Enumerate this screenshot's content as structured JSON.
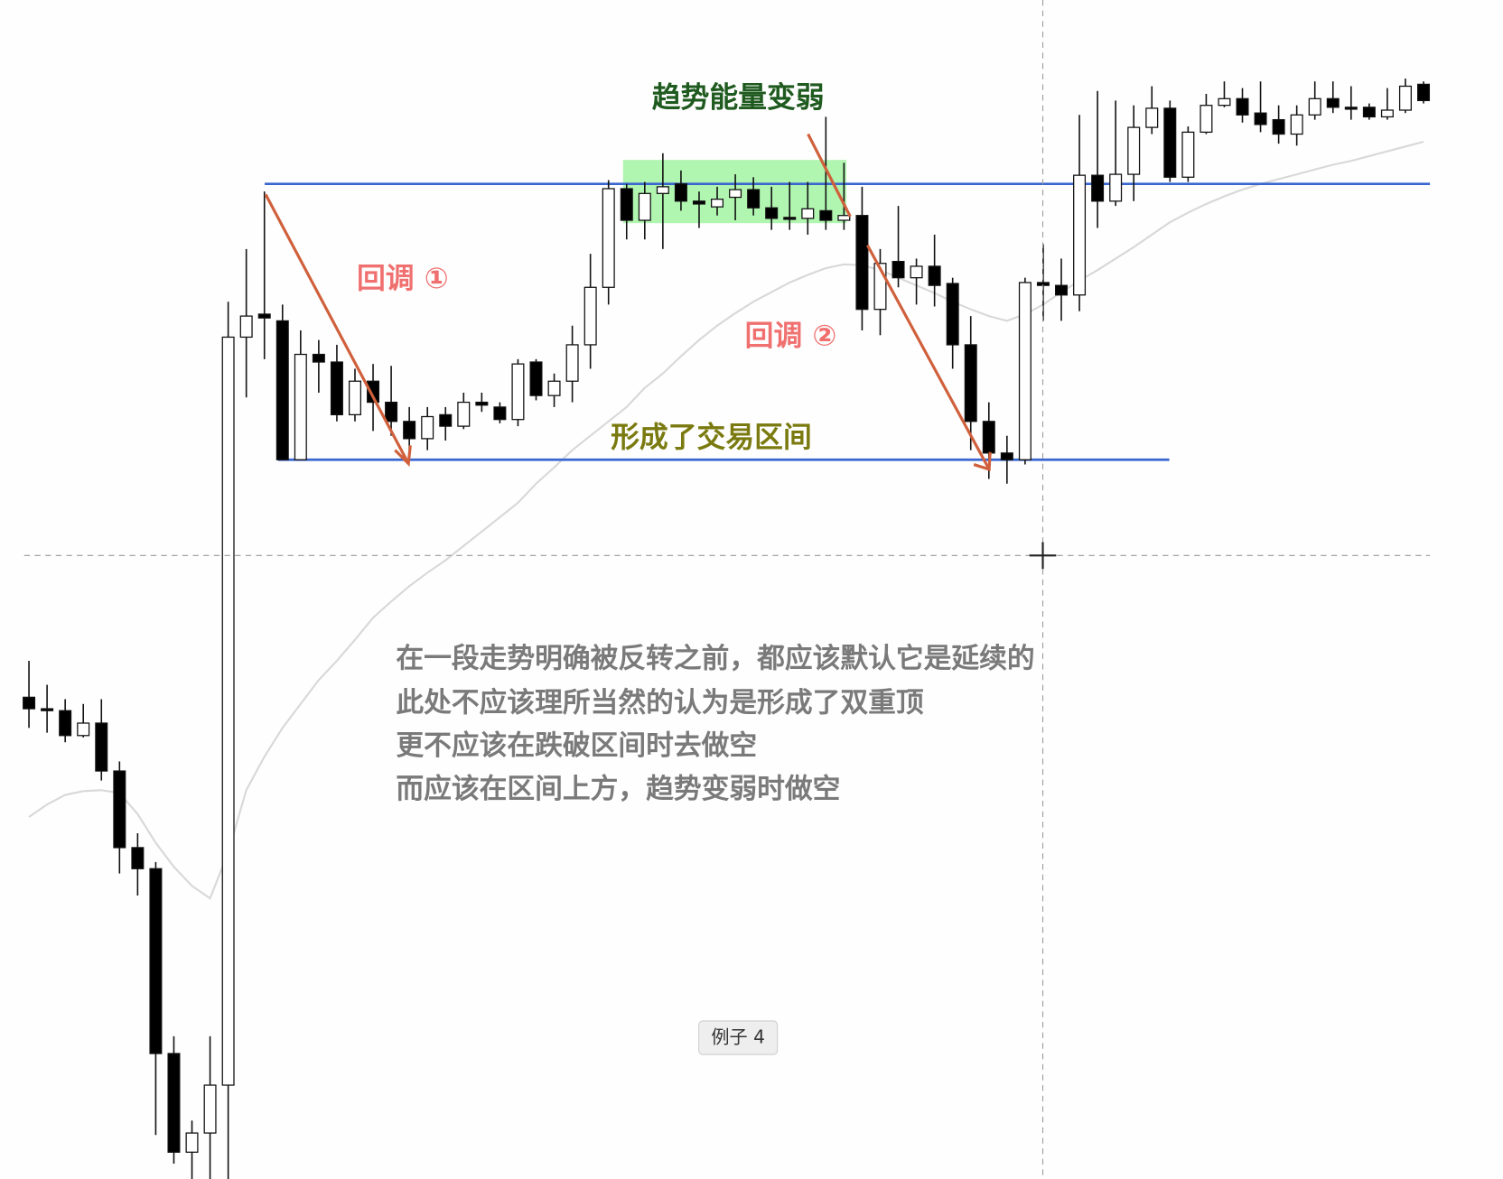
{
  "chart_data": {
    "type": "candlestick",
    "open": [
      503,
      491,
      489,
      463,
      476,
      426,
      346,
      324,
      131,
      28,
      48,
      98,
      879,
      903,
      896,
      751,
      861,
      853,
      798,
      833,
      811,
      791,
      773,
      798,
      786,
      811,
      806,
      793,
      853,
      818,
      833,
      871,
      931,
      1034,
      1001,
      1029,
      1039,
      1021,
      1015,
      1025,
      1033,
      1014,
      1004,
      1003,
      1011,
      1001,
      1006,
      908,
      958,
      941,
      953,
      935,
      871,
      791,
      758,
      751,
      936,
      933,
      923,
      1048,
      1021,
      1049,
      1098,
      1118,
      1046,
      1093,
      1121,
      1128,
      1113,
      1106,
      1091,
      1111,
      1128,
      1119,
      1119,
      1109,
      1116,
      1143
    ],
    "high": [
      541,
      516,
      501,
      496,
      501,
      436,
      361,
      331,
      149,
      61,
      149,
      916,
      971,
      1031,
      913,
      886,
      876,
      871,
      846,
      851,
      849,
      806,
      806,
      806,
      821,
      821,
      811,
      856,
      856,
      841,
      891,
      966,
      1043,
      1039,
      1041,
      1071,
      1053,
      1031,
      1036,
      1049,
      1046,
      1036,
      1041,
      1041,
      1109,
      1061,
      1036,
      971,
      1016,
      961,
      986,
      941,
      901,
      811,
      776,
      941,
      976,
      961,
      1111,
      1136,
      1126,
      1121,
      1141,
      1126,
      1099,
      1133,
      1146,
      1139,
      1146,
      1121,
      1121,
      1146,
      1146,
      1141,
      1123,
      1139,
      1149,
      1146
    ],
    "low": [
      471,
      466,
      456,
      461,
      416,
      319,
      296,
      46,
      16,
      0,
      0,
      0,
      816,
      856,
      751,
      751,
      821,
      791,
      791,
      781,
      776,
      761,
      761,
      771,
      783,
      801,
      789,
      786,
      813,
      806,
      811,
      846,
      913,
      981,
      981,
      971,
      1011,
      993,
      1006,
      1001,
      1006,
      991,
      991,
      986,
      991,
      991,
      886,
      881,
      931,
      913,
      911,
      846,
      761,
      731,
      726,
      746,
      896,
      896,
      906,
      993,
      1016,
      1021,
      1091,
      1041,
      1041,
      1091,
      1119,
      1103,
      1093,
      1081,
      1079,
      1106,
      1113,
      1106,
      1106,
      1106,
      1113,
      1123
    ],
    "close": [
      491,
      489,
      463,
      476,
      426,
      346,
      324,
      131,
      28,
      48,
      98,
      879,
      901,
      899,
      751,
      861,
      853,
      798,
      833,
      811,
      791,
      773,
      796,
      786,
      811,
      808,
      793,
      851,
      818,
      833,
      871,
      931,
      1034,
      1001,
      1029,
      1036,
      1021,
      1018,
      1023,
      1033,
      1014,
      1003,
      1002,
      1013,
      1001,
      1006,
      908,
      956,
      941,
      953,
      933,
      871,
      791,
      758,
      751,
      936,
      933,
      923,
      1048,
      1021,
      1049,
      1098,
      1118,
      1046,
      1093,
      1121,
      1128,
      1111,
      1101,
      1091,
      1111,
      1128,
      1119,
      1118,
      1109,
      1116,
      1141,
      1126
    ],
    "ma": [
      378,
      391,
      401,
      405,
      406,
      403,
      381,
      351,
      326,
      306,
      293,
      341,
      406,
      441,
      471,
      496,
      521,
      541,
      563,
      586,
      603,
      619,
      633,
      646,
      661,
      676,
      691,
      706,
      726,
      743,
      761,
      776,
      791,
      806,
      826,
      841,
      859,
      876,
      891,
      904,
      916,
      926,
      936,
      944,
      951,
      955,
      954,
      949,
      941,
      933,
      925,
      916,
      908,
      901,
      896,
      903,
      913,
      926,
      938,
      949,
      961,
      973,
      986,
      999,
      1009,
      1018,
      1026,
      1033,
      1039,
      1044,
      1049,
      1054,
      1059,
      1063,
      1068,
      1073,
      1078,
      1083
    ],
    "ylim": [
      0,
      1231
    ],
    "levels": [
      1039,
      751
    ],
    "annotations": [
      "趋势能量变弱",
      "回调 ①",
      "回调 ②",
      "形成了交易区间"
    ]
  },
  "notes": [
    "在一段走势明确被反转之前，都应该默认它是延续的",
    "此处不应该理所当然的认为是形成了双重顶",
    "更不应该在跌破区间时去做空",
    "而应该在区间上方，趋势变弱时做空"
  ],
  "button": "例子 4"
}
